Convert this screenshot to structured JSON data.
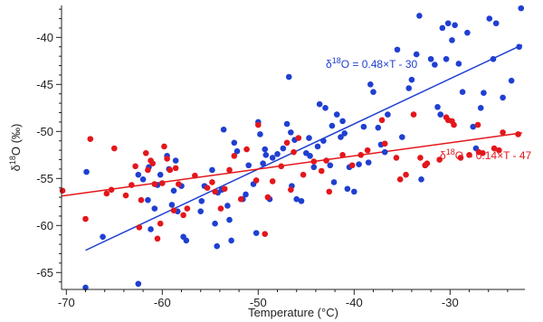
{
  "chart_data": {
    "type": "scatter",
    "xlabel": "Temperature (°C)",
    "ylabel": {
      "pre": "δ",
      "sup": "18",
      "post": "O (‰)"
    },
    "xlim": [
      -70.5,
      -22.2
    ],
    "ylim": [
      -66.8,
      -36.6
    ],
    "xticks": [
      -70,
      -60,
      -50,
      -40,
      -30
    ],
    "yticks": [
      -65,
      -60,
      -55,
      -50,
      -45,
      -40
    ],
    "xtick_labels": [
      "-70",
      "-60",
      "-50",
      "-40",
      "-30"
    ],
    "ytick_labels": [
      "-65",
      "-60",
      "-55",
      "-50",
      "-45",
      "-40"
    ],
    "grid": false,
    "legend": "none",
    "series": [
      {
        "color": "#1f3fd1",
        "points": [
          [
            -68,
            -66.6
          ],
          [
            -67.9,
            -54.3
          ],
          [
            -66.2,
            -61.2
          ],
          [
            -62.5,
            -66.2
          ],
          [
            -62.5,
            -54.6
          ],
          [
            -62,
            -55.1
          ],
          [
            -61.5,
            -57.3
          ],
          [
            -61.4,
            -53.8
          ],
          [
            -61.2,
            -60.4
          ],
          [
            -60.8,
            -58.2
          ],
          [
            -60.5,
            -55.7
          ],
          [
            -60.2,
            -54.6
          ],
          [
            -59.5,
            -52.6
          ],
          [
            -59.3,
            -54
          ],
          [
            -59,
            -57.8
          ],
          [
            -58.8,
            -56.3
          ],
          [
            -58.6,
            -53.1
          ],
          [
            -58.4,
            -58.5
          ],
          [
            -58,
            -55.8
          ],
          [
            -57.8,
            -61.2
          ],
          [
            -57.5,
            -61.6
          ],
          [
            -56,
            -58.5
          ],
          [
            -55.9,
            -57.4
          ],
          [
            -55.6,
            -55.8
          ],
          [
            -54.8,
            -54.1
          ],
          [
            -54.5,
            -59.8
          ],
          [
            -54.3,
            -62.2
          ],
          [
            -54.2,
            -56.5
          ],
          [
            -53.8,
            -56.2
          ],
          [
            -53.6,
            -49.8
          ],
          [
            -53.2,
            -57.9
          ],
          [
            -53,
            -59.4
          ],
          [
            -52.8,
            -61.6
          ],
          [
            -52.5,
            -51.2
          ],
          [
            -52.2,
            -52.1
          ],
          [
            -51.6,
            -57.2
          ],
          [
            -51.3,
            -56.7
          ],
          [
            -51,
            -53.6
          ],
          [
            -50.5,
            -55.6
          ],
          [
            -50.2,
            -60.8
          ],
          [
            -50,
            -49
          ],
          [
            -49.8,
            -50.3
          ],
          [
            -49.5,
            -53.4
          ],
          [
            -49.3,
            -51.9
          ],
          [
            -49.2,
            -52.5
          ],
          [
            -48.8,
            -57.2
          ],
          [
            -48.5,
            -52.8
          ],
          [
            -48,
            -52.4
          ],
          [
            -47.4,
            -51.8
          ],
          [
            -47,
            -49.2
          ],
          [
            -46.8,
            -44.2
          ],
          [
            -46.6,
            -50.1
          ],
          [
            -46.5,
            -55.8
          ],
          [
            -46.2,
            -50.9
          ],
          [
            -46,
            -57.2
          ],
          [
            -45.5,
            -57.4
          ],
          [
            -45,
            -52.3
          ],
          [
            -44.7,
            -50.7
          ],
          [
            -44.6,
            -52.6
          ],
          [
            -44.2,
            -53.8
          ],
          [
            -43.8,
            -51.6
          ],
          [
            -43.6,
            -47.1
          ],
          [
            -43.2,
            -51
          ],
          [
            -43,
            -47.5
          ],
          [
            -42.5,
            -53.6
          ],
          [
            -42.3,
            -49.4
          ],
          [
            -42.1,
            -55.4
          ],
          [
            -41.8,
            -48.2
          ],
          [
            -41.4,
            -50.6
          ],
          [
            -41.2,
            -48.9
          ],
          [
            -41,
            -50.2
          ],
          [
            -40.7,
            -56.1
          ],
          [
            -40.5,
            -53.8
          ],
          [
            -40,
            -56.4
          ],
          [
            -39.5,
            -53.5
          ],
          [
            -39,
            -49.5
          ],
          [
            -38.5,
            -53.3
          ],
          [
            -38.3,
            -45
          ],
          [
            -38,
            -45.8
          ],
          [
            -37.5,
            -49.6
          ],
          [
            -37.2,
            -51.4
          ],
          [
            -36.8,
            -52.2
          ],
          [
            -36.5,
            -48.2
          ],
          [
            -35.5,
            -41.3
          ],
          [
            -35,
            -50.6
          ],
          [
            -34.3,
            -45.4
          ],
          [
            -34,
            -44.5
          ],
          [
            -33.5,
            -41.8
          ],
          [
            -33.2,
            -37.7
          ],
          [
            -33,
            -55.1
          ],
          [
            -32.6,
            -53.6
          ],
          [
            -32,
            -42.3
          ],
          [
            -31.6,
            -42.9
          ],
          [
            -31.3,
            -47.4
          ],
          [
            -31,
            -48.2
          ],
          [
            -30.8,
            -39
          ],
          [
            -30.4,
            -42.3
          ],
          [
            -30.2,
            -38.5
          ],
          [
            -29.8,
            -40.3
          ],
          [
            -29.5,
            -38.7
          ],
          [
            -29.1,
            -42.8
          ],
          [
            -28.7,
            -45.8
          ],
          [
            -28.2,
            -39.5
          ],
          [
            -27.6,
            -49.5
          ],
          [
            -27.3,
            -51.8
          ],
          [
            -26.8,
            -47.5
          ],
          [
            -26.5,
            -45.9
          ],
          [
            -25.9,
            -38
          ],
          [
            -25.5,
            -42.3
          ],
          [
            -25.2,
            -38.5
          ],
          [
            -24.5,
            -46.4
          ],
          [
            -23.6,
            -44.6
          ],
          [
            -22.8,
            -41
          ],
          [
            -22.6,
            -36.9
          ]
        ],
        "fit": {
          "slope": 0.48,
          "intercept": -30,
          "x_range": [
            -68,
            -22.5
          ],
          "label": "= 0.48×T - 30"
        }
      },
      {
        "color": "#e3161b",
        "points": [
          [
            -70.4,
            -56.3
          ],
          [
            -68,
            -59.3
          ],
          [
            -67.5,
            -50.8
          ],
          [
            -65.8,
            -56.6
          ],
          [
            -65.3,
            -56.2
          ],
          [
            -65,
            -51.8
          ],
          [
            -63.8,
            -56.8
          ],
          [
            -63.2,
            -55.7
          ],
          [
            -62.8,
            -53.7
          ],
          [
            -62.4,
            -60.2
          ],
          [
            -62.2,
            -57.3
          ],
          [
            -61.7,
            -52.3
          ],
          [
            -61.5,
            -54.1
          ],
          [
            -61.2,
            -53.1
          ],
          [
            -61,
            -53.4
          ],
          [
            -60.8,
            -55.6
          ],
          [
            -60.5,
            -61.4
          ],
          [
            -60.2,
            -59.8
          ],
          [
            -60,
            -55.5
          ],
          [
            -59.8,
            -51.6
          ],
          [
            -59.5,
            -52.9
          ],
          [
            -59.2,
            -54.1
          ],
          [
            -58.8,
            -58.4
          ],
          [
            -58.6,
            -53.9
          ],
          [
            -58.3,
            -55.6
          ],
          [
            -57.8,
            -58.9
          ],
          [
            -57.4,
            -58.2
          ],
          [
            -56.6,
            -54.7
          ],
          [
            -55.3,
            -56
          ],
          [
            -54.8,
            -55.4
          ],
          [
            -54.5,
            -56.4
          ],
          [
            -53.9,
            -58.2
          ],
          [
            -53.5,
            -56.1
          ],
          [
            -53,
            -54.1
          ],
          [
            -52.5,
            -52.6
          ],
          [
            -51.8,
            -57.2
          ],
          [
            -51.2,
            -51.9
          ],
          [
            -50.2,
            -55.2
          ],
          [
            -50,
            -49.3
          ],
          [
            -49.3,
            -60.9
          ],
          [
            -49,
            -57
          ],
          [
            -48.5,
            -55.3
          ],
          [
            -47.6,
            -53.7
          ],
          [
            -47,
            -51.2
          ],
          [
            -46.6,
            -56.2
          ],
          [
            -46.3,
            -52.2
          ],
          [
            -45.8,
            -50.7
          ],
          [
            -45.3,
            -54.6
          ],
          [
            -44.2,
            -53.2
          ],
          [
            -43.4,
            -54.2
          ],
          [
            -42.9,
            -53.1
          ],
          [
            -42.6,
            -56.4
          ],
          [
            -41.2,
            -52.5
          ],
          [
            -40.2,
            -53.6
          ],
          [
            -39.3,
            -52.5
          ],
          [
            -38.6,
            -52
          ],
          [
            -37.1,
            -48.8
          ],
          [
            -36.8,
            -51.3
          ],
          [
            -35.6,
            -52.8
          ],
          [
            -35.2,
            -55.1
          ],
          [
            -34.6,
            -54.6
          ],
          [
            -33.8,
            -48.2
          ],
          [
            -33.1,
            -52.8
          ],
          [
            -32.6,
            -53.6
          ],
          [
            -32.4,
            -53.4
          ],
          [
            -31.1,
            -53
          ],
          [
            -30.4,
            -48.5
          ],
          [
            -30.2,
            -48.8
          ],
          [
            -29.8,
            -48.9
          ],
          [
            -29.6,
            -49.3
          ],
          [
            -28.9,
            -52.8
          ],
          [
            -28,
            -52.5
          ],
          [
            -27.1,
            -49.3
          ],
          [
            -27,
            -52.2
          ],
          [
            -26.6,
            -52.3
          ],
          [
            -25.4,
            -51.8
          ],
          [
            -24.9,
            -52
          ],
          [
            -24.5,
            -50.1
          ],
          [
            -22.9,
            -50.3
          ]
        ],
        "fit": {
          "slope": 0.14,
          "intercept": -47,
          "x_range": [
            -70.5,
            -22.5
          ],
          "label": "= 0.14×T - 47"
        }
      }
    ],
    "fit_label_prefix": {
      "pre": "δ",
      "sup": "18",
      "post": "O "
    }
  }
}
